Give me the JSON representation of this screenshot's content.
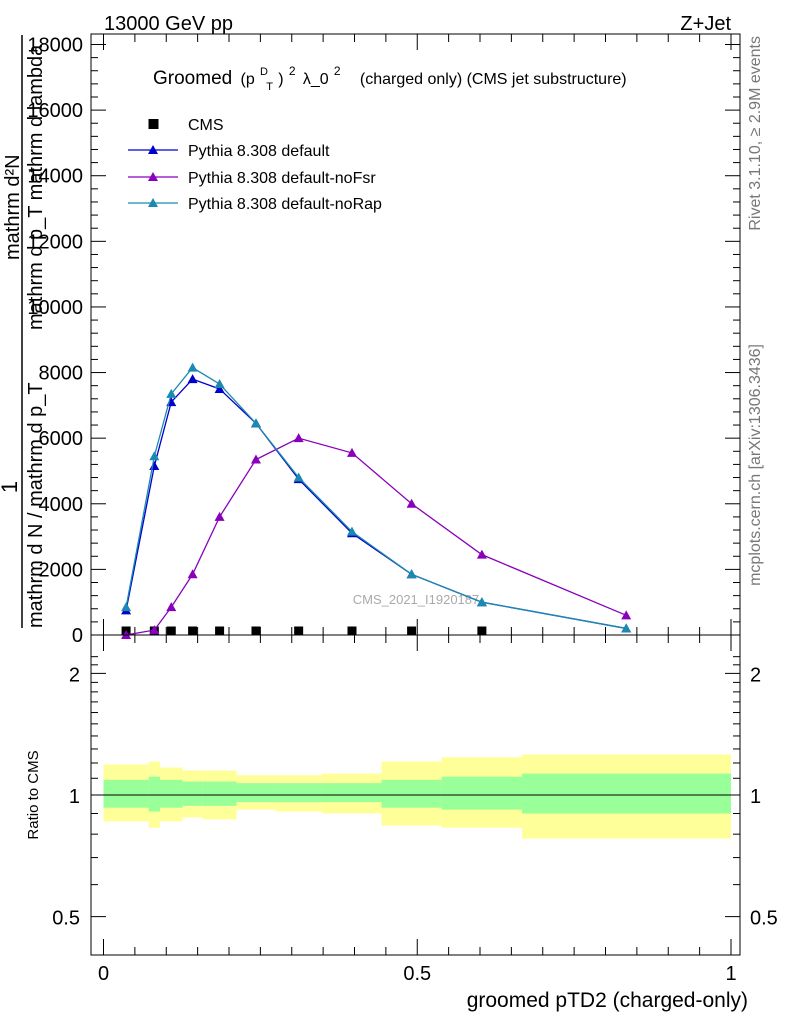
{
  "header": {
    "left": "13000 GeV pp",
    "right": "Z+Jet"
  },
  "side_labels": {
    "rivet": "Rivet 3.1.10, ≥ 2.9M events",
    "mcplots": "mcplots.cern.ch [arXiv:1306.3436]"
  },
  "title_parts": {
    "groomed": "Groomed",
    "p": "(p",
    "sup_d": "D",
    "sub_t": "T",
    "close": ")",
    "sq": "2",
    "lambda": "λ_0",
    "sq2": "2",
    "rest": "(charged only) (CMS jet substructure)"
  },
  "watermark": "CMS_2021_I1920187",
  "ylabel_parts": {
    "one": "1",
    "line1": "mathrm d N / mathrm d p_T",
    "line2": "mathrm d²N",
    "line3": "mathrm d p_T mathrm d lambda"
  },
  "ratio_ylabel": "Ratio to CMS",
  "xlabel": "groomed pTD2 (charged-only)",
  "chart_data": [
    {
      "type": "line",
      "panel": "main",
      "xlim": [
        0,
        1
      ],
      "ylim": [
        0,
        18000
      ],
      "x_ticks": [
        0,
        0.5,
        1
      ],
      "y_ticks": [
        0,
        2000,
        4000,
        6000,
        8000,
        10000,
        12000,
        14000,
        16000,
        18000
      ],
      "y_tick_labels": [
        "0",
        "2000",
        "4000",
        "6000",
        "8000",
        "10000",
        "12000",
        "14000",
        "16000",
        "18000"
      ],
      "legend": {
        "placement": "top-left"
      },
      "series": [
        {
          "name": "CMS",
          "style": "square",
          "color": "#000000",
          "x": [
            0.036,
            0.081,
            0.108,
            0.142,
            0.185,
            0.243,
            0.311,
            0.396,
            0.491,
            0.603
          ],
          "y": [
            0,
            0,
            0,
            0,
            0,
            0,
            0,
            0,
            0,
            0
          ]
        },
        {
          "name": "Pythia 8.308 default",
          "style": "triangle",
          "color": "#0000cc",
          "x": [
            0.036,
            0.081,
            0.108,
            0.142,
            0.185,
            0.243,
            0.311,
            0.396,
            0.491,
            0.603,
            0.833
          ],
          "y": [
            750,
            5150,
            7100,
            7800,
            7500,
            6450,
            4750,
            3100,
            1850,
            1000,
            200
          ]
        },
        {
          "name": "Pythia 8.308 default-noFsr",
          "style": "triangle",
          "color": "#8800bb",
          "x": [
            0.036,
            0.081,
            0.108,
            0.142,
            0.185,
            0.243,
            0.311,
            0.396,
            0.491,
            0.603,
            0.833
          ],
          "y": [
            0,
            150,
            850,
            1850,
            3600,
            5350,
            6000,
            5550,
            4000,
            2450,
            600
          ]
        },
        {
          "name": "Pythia 8.308 default-noRap",
          "style": "triangle",
          "color": "#1a8ab0",
          "x": [
            0.036,
            0.081,
            0.108,
            0.142,
            0.185,
            0.243,
            0.311,
            0.396,
            0.491,
            0.603,
            0.833
          ],
          "y": [
            850,
            5450,
            7350,
            8150,
            7650,
            6450,
            4800,
            3150,
            1850,
            1000,
            200
          ]
        }
      ]
    },
    {
      "type": "area",
      "panel": "ratio",
      "xlim": [
        0,
        1
      ],
      "ylim": [
        0.4,
        2.3
      ],
      "scale": "log",
      "x_ticks": [
        0,
        0.5,
        1
      ],
      "x_tick_labels": [
        "0",
        "0.5",
        "1"
      ],
      "y_ticks": [
        0.5,
        1,
        2
      ],
      "y_tick_labels": [
        "0.5",
        "1",
        "2"
      ],
      "reference": 1,
      "bins": [
        0.0,
        0.072,
        0.09,
        0.126,
        0.158,
        0.212,
        0.274,
        0.348,
        0.443,
        0.539,
        0.667,
        1.0
      ],
      "inner_band_up": [
        1.09,
        1.11,
        1.09,
        1.08,
        1.08,
        1.07,
        1.07,
        1.07,
        1.09,
        1.11,
        1.13
      ],
      "inner_band_down": [
        0.93,
        0.91,
        0.93,
        0.94,
        0.94,
        0.96,
        0.96,
        0.96,
        0.93,
        0.92,
        0.9
      ],
      "outer_band_up": [
        1.19,
        1.21,
        1.17,
        1.15,
        1.15,
        1.12,
        1.12,
        1.13,
        1.21,
        1.24,
        1.26
      ],
      "outer_band_down": [
        0.86,
        0.83,
        0.86,
        0.88,
        0.87,
        0.92,
        0.91,
        0.9,
        0.84,
        0.83,
        0.78
      ],
      "colors": {
        "inner": "#99ff99",
        "outer": "#ffff99"
      }
    }
  ]
}
